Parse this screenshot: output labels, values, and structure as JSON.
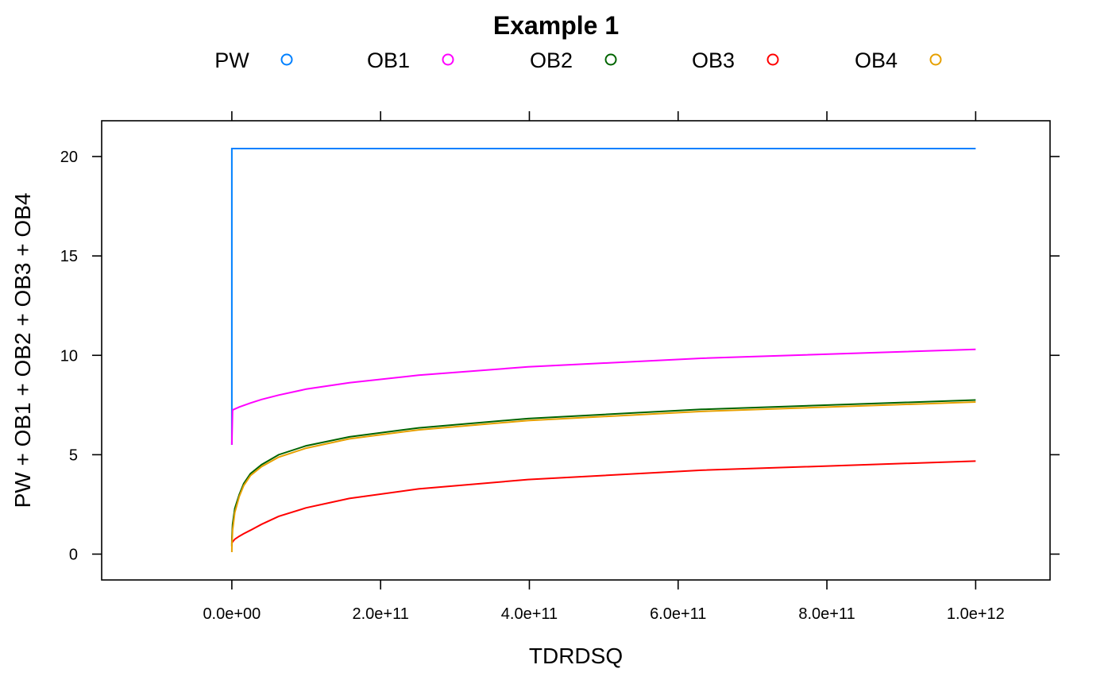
{
  "chart_data": {
    "type": "line",
    "title": "Example 1",
    "xlabel": "TDRDSQ",
    "ylabel": "PW + OB1 + OB2 + OB3 + OB4",
    "xlim": [
      -175000000000.0,
      1100000000000.0
    ],
    "ylim": [
      -1.3,
      21.8
    ],
    "x_ticks": [
      0,
      200000000000.0,
      400000000000.0,
      600000000000.0,
      800000000000.0,
      1000000000000.0
    ],
    "x_tick_labels": [
      "0.0e+00",
      "2.0e+11",
      "4.0e+11",
      "6.0e+11",
      "8.0e+11",
      "1.0e+12"
    ],
    "y_ticks": [
      0,
      5,
      10,
      15,
      20
    ],
    "y_tick_labels": [
      "0",
      "5",
      "10",
      "15",
      "20"
    ],
    "legend_position": "top",
    "grid": false,
    "series": [
      {
        "name": "PW",
        "color": "#0080ff",
        "x": [
          0,
          0,
          1000000000000.0
        ],
        "y": [
          5.5,
          20.4,
          20.4
        ]
      },
      {
        "name": "OB1",
        "color": "#ff00ff",
        "x": [
          0,
          1000000000.0,
          10000000000.0,
          25000000000.0,
          40000000000.0,
          63000000000.0,
          100000000000.0,
          158000000000.0,
          251000000000.0,
          398000000000.0,
          631000000000.0,
          1000000000000.0
        ],
        "y": [
          5.5,
          7.25,
          7.4,
          7.6,
          7.78,
          8.0,
          8.3,
          8.62,
          9.0,
          9.42,
          9.85,
          10.3
        ]
      },
      {
        "name": "OB2",
        "color": "#006400",
        "x": [
          0,
          100000000.0,
          1000000000.0,
          4000000000.0,
          10000000000.0,
          16000000000.0,
          25000000000.0,
          40000000000.0,
          63000000000.0,
          100000000000.0,
          158000000000.0,
          251000000000.0,
          398000000000.0,
          631000000000.0,
          1000000000000.0
        ],
        "y": [
          0.4,
          0.8,
          1.5,
          2.3,
          3.0,
          3.55,
          4.05,
          4.5,
          5.0,
          5.45,
          5.9,
          6.35,
          6.82,
          7.28,
          7.75
        ]
      },
      {
        "name": "OB3",
        "color": "#ff0000",
        "x": [
          0,
          100000000.0,
          1000000000.0,
          4000000000.0,
          10000000000.0,
          16000000000.0,
          25000000000.0,
          40000000000.0,
          63000000000.0,
          100000000000.0,
          158000000000.0,
          251000000000.0,
          398000000000.0,
          631000000000.0,
          1000000000000.0
        ],
        "y": [
          0.5,
          0.55,
          0.62,
          0.75,
          0.9,
          1.03,
          1.2,
          1.5,
          1.9,
          2.33,
          2.8,
          3.28,
          3.75,
          4.22,
          4.68
        ]
      },
      {
        "name": "OB4",
        "color": "#e6a000",
        "x": [
          0,
          100000000.0,
          1000000000.0,
          4000000000.0,
          10000000000.0,
          16000000000.0,
          25000000000.0,
          40000000000.0,
          63000000000.0,
          100000000000.0,
          158000000000.0,
          251000000000.0,
          398000000000.0,
          631000000000.0,
          1000000000000.0
        ],
        "y": [
          0.1,
          0.5,
          1.2,
          2.1,
          2.9,
          3.45,
          3.95,
          4.4,
          4.88,
          5.33,
          5.8,
          6.25,
          6.72,
          7.18,
          7.65
        ]
      }
    ]
  }
}
